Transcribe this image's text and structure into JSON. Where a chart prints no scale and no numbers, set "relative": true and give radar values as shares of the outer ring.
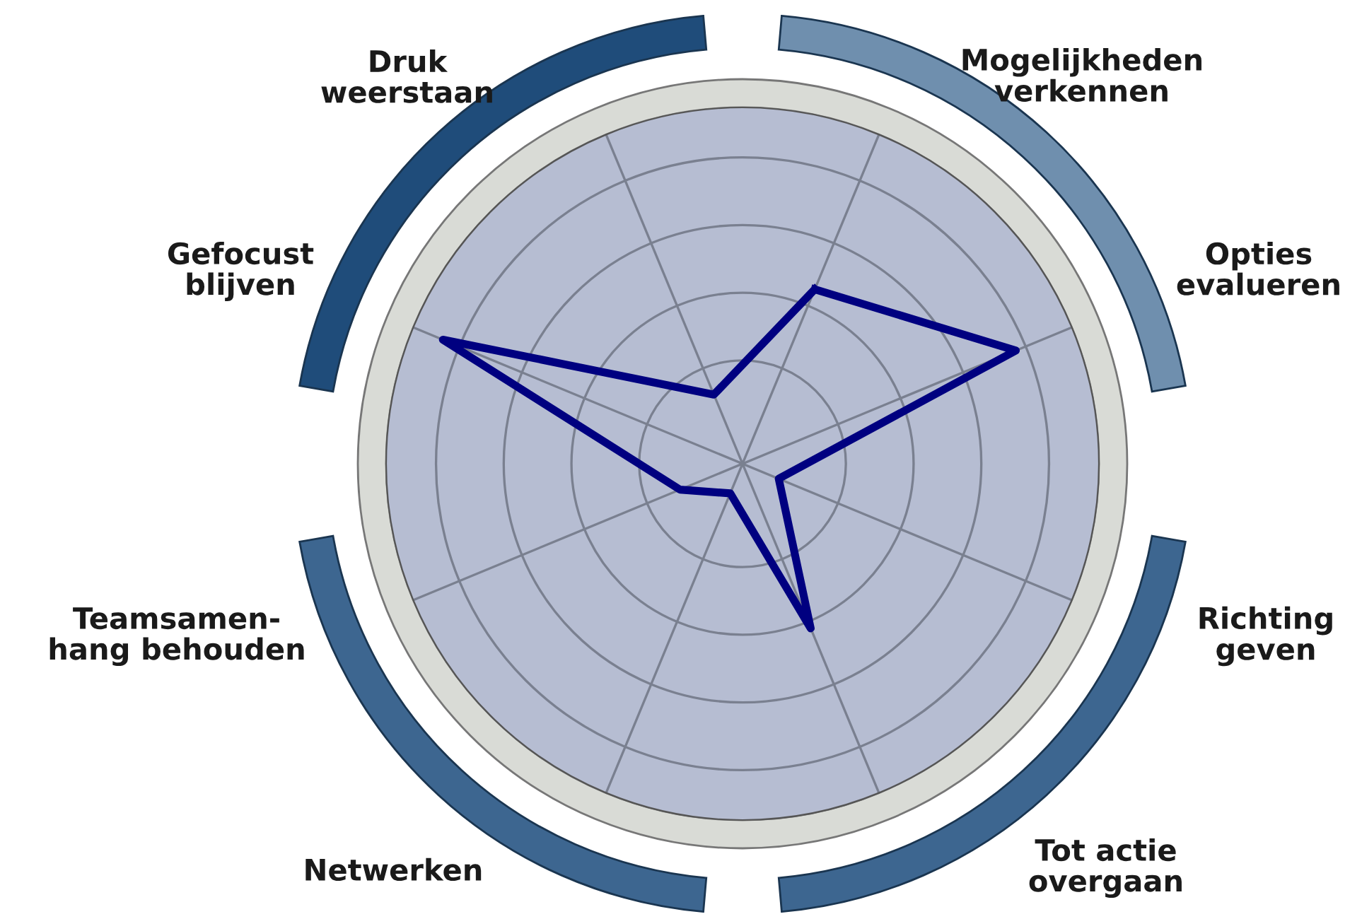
{
  "chart_data": {
    "type": "radar",
    "relative": true,
    "grid": true,
    "categories": [
      "Mogelijkheden\nverkennen",
      "Opties\nevalueren",
      "Richting\ngeven",
      "Tot actie\novergaan",
      "Netwerken",
      "Teamsamen-\nhang behouden",
      "Gefocust\nblijven",
      "Druk\nweerstaan"
    ],
    "series": [
      {
        "color": "#000080",
        "values": [
          0.53,
          0.83,
          0.11,
          0.5,
          0.09,
          0.19,
          0.91,
          0.21
        ]
      }
    ]
  }
}
